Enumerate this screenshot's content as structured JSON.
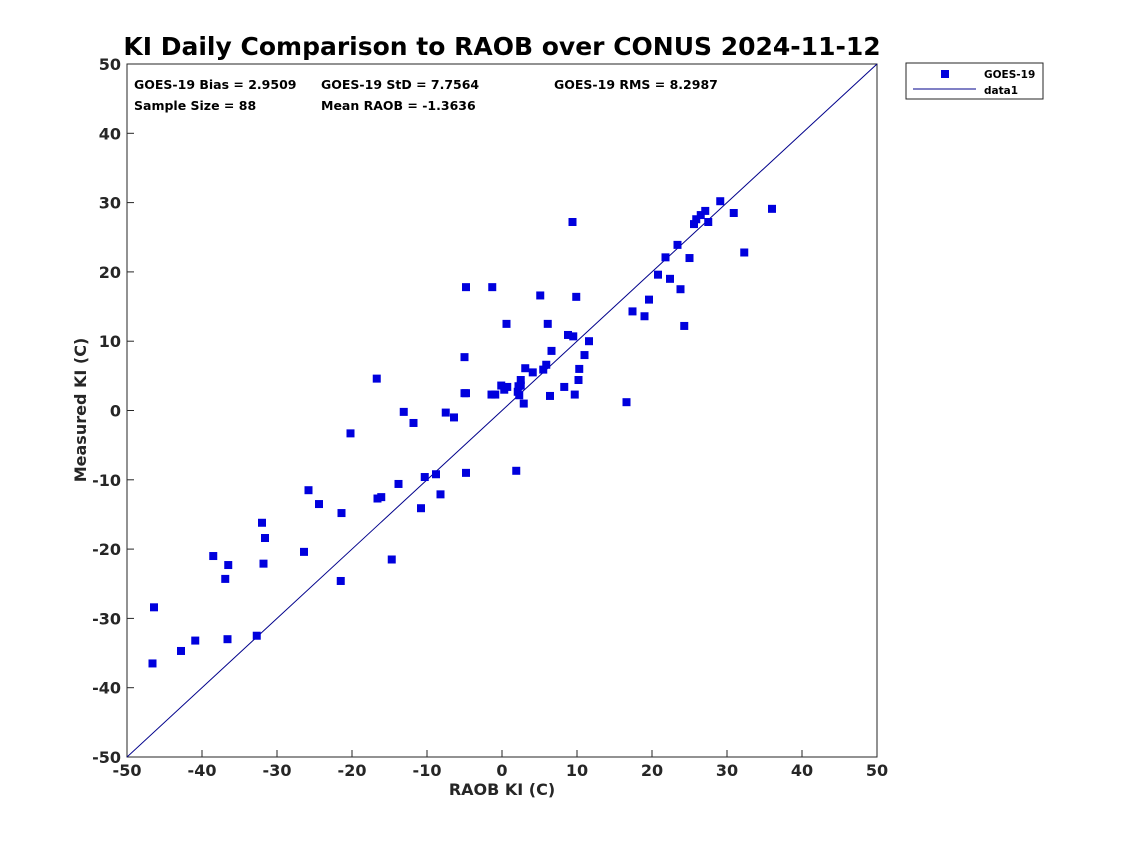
{
  "chart_data": {
    "type": "scatter",
    "title": "KI Daily Comparison to RAOB over CONUS 2024-11-12",
    "xlabel": "RAOB KI (C)",
    "ylabel": "Measured KI (C)",
    "xlim": [
      -50,
      50
    ],
    "ylim": [
      -50,
      50
    ],
    "xticks": [
      -50,
      -40,
      -30,
      -20,
      -10,
      0,
      10,
      20,
      30,
      40,
      50
    ],
    "yticks": [
      -50,
      -40,
      -30,
      -20,
      -10,
      0,
      10,
      20,
      30,
      40,
      50
    ],
    "grid": false,
    "legend_position": "outside top-right",
    "marker_color": "#0000dd",
    "line_color": "#00008b",
    "stats": {
      "bias": "GOES-19 Bias = 2.9509",
      "std": "GOES-19 StD = 7.7564",
      "rms": "GOES-19 RMS = 8.2987",
      "sample_size": "Sample Size = 88",
      "mean_raob": "Mean RAOB = -1.3636"
    },
    "series": [
      {
        "name": "GOES-19",
        "kind": "scatter",
        "points": [
          [
            -46.6,
            -36.5
          ],
          [
            -46.4,
            -28.4
          ],
          [
            -42.8,
            -34.7
          ],
          [
            -40.9,
            -33.2
          ],
          [
            -38.5,
            -21.0
          ],
          [
            -36.9,
            -24.3
          ],
          [
            -36.6,
            -33.0
          ],
          [
            -36.5,
            -22.3
          ],
          [
            -32.7,
            -32.5
          ],
          [
            -32.0,
            -16.2
          ],
          [
            -31.8,
            -22.1
          ],
          [
            -31.6,
            -18.4
          ],
          [
            -26.4,
            -20.4
          ],
          [
            -25.8,
            -11.5
          ],
          [
            -24.4,
            -13.5
          ],
          [
            -21.5,
            -24.6
          ],
          [
            -21.4,
            -14.8
          ],
          [
            -20.2,
            -3.3
          ],
          [
            -16.7,
            4.6
          ],
          [
            -16.6,
            -12.7
          ],
          [
            -16.1,
            -12.5
          ],
          [
            -14.7,
            -21.5
          ],
          [
            -13.8,
            -10.6
          ],
          [
            -13.1,
            -0.2
          ],
          [
            -11.8,
            -1.8
          ],
          [
            -10.8,
            -14.1
          ],
          [
            -10.3,
            -9.6
          ],
          [
            -8.8,
            -9.2
          ],
          [
            -8.2,
            -12.1
          ],
          [
            -7.5,
            -0.3
          ],
          [
            -6.4,
            -1.0
          ],
          [
            -5.0,
            7.7
          ],
          [
            -4.8,
            17.8
          ],
          [
            -4.8,
            2.5
          ],
          [
            -4.8,
            -9.0
          ],
          [
            -1.4,
            2.3
          ],
          [
            -1.3,
            17.8
          ],
          [
            -0.9,
            2.3
          ],
          [
            -0.1,
            3.6
          ],
          [
            0.3,
            3.0
          ],
          [
            0.6,
            12.5
          ],
          [
            0.7,
            3.4
          ],
          [
            1.9,
            -8.7
          ],
          [
            2.1,
            2.7
          ],
          [
            2.2,
            3.5
          ],
          [
            2.3,
            2.2
          ],
          [
            2.5,
            3.6
          ],
          [
            2.5,
            4.4
          ],
          [
            2.9,
            1.0
          ],
          [
            3.1,
            6.1
          ],
          [
            4.1,
            5.5
          ],
          [
            5.1,
            16.6
          ],
          [
            5.5,
            5.9
          ],
          [
            5.9,
            6.6
          ],
          [
            6.1,
            12.5
          ],
          [
            6.4,
            2.1
          ],
          [
            6.6,
            8.6
          ],
          [
            8.3,
            3.4
          ],
          [
            8.8,
            10.9
          ],
          [
            9.4,
            27.2
          ],
          [
            9.5,
            10.7
          ],
          [
            9.7,
            2.3
          ],
          [
            9.9,
            16.4
          ],
          [
            10.2,
            4.4
          ],
          [
            10.3,
            6.0
          ],
          [
            11.0,
            8.0
          ],
          [
            11.6,
            10.0
          ],
          [
            16.6,
            1.2
          ],
          [
            17.4,
            14.3
          ],
          [
            19.0,
            13.6
          ],
          [
            19.6,
            16.0
          ],
          [
            20.8,
            19.6
          ],
          [
            21.8,
            22.1
          ],
          [
            22.4,
            19.0
          ],
          [
            23.4,
            23.9
          ],
          [
            23.8,
            17.5
          ],
          [
            24.3,
            12.2
          ],
          [
            25.0,
            22.0
          ],
          [
            25.6,
            26.9
          ],
          [
            25.9,
            27.6
          ],
          [
            26.5,
            28.2
          ],
          [
            27.1,
            28.8
          ],
          [
            27.5,
            27.2
          ],
          [
            29.1,
            30.2
          ],
          [
            30.9,
            28.5
          ],
          [
            32.3,
            22.8
          ],
          [
            36.0,
            29.1
          ],
          [
            -5.0,
            2.5
          ]
        ]
      },
      {
        "name": "data1",
        "kind": "line",
        "points": [
          [
            -50,
            -50
          ],
          [
            50,
            50
          ]
        ]
      }
    ]
  }
}
